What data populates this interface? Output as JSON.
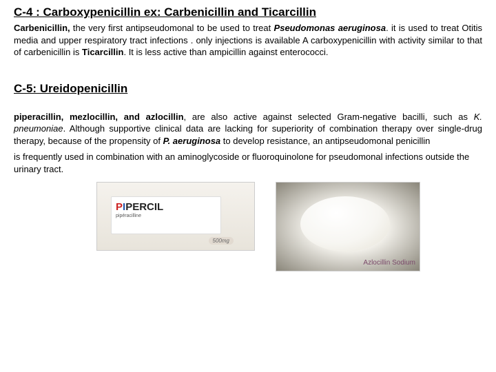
{
  "section1": {
    "heading": "C-4 : Carboxypenicillin  ex: Carbenicillin  and Ticarcillin",
    "p1a": "Carbenicillin,",
    "p1b": " the very first antipseudomonal  to be used to treat ",
    "p1c": "Pseudomonas aeruginosa",
    "p1d": ". it is used to treat Otitis media and upper respiratory tract infections . only injections is available  A carboxypenicillin with activity similar to that of  carbenicillin is ",
    "p1e": "Ticarcillin",
    "p1f": ". It is less active than  ampicillin against enterococci."
  },
  "section2": {
    "heading": "C-5: Ureidopenicillin",
    "p2a": "piperacillin, mezlocillin, and azlocillin",
    "p2b": ", are also active against selected Gram-negative bacilli, such as ",
    "p2c": "K. pneumoniae",
    "p2d": ". Although supportive  clinical data are lacking for superiority  of combination therapy over single-drug therapy, because of the propensity of ",
    "p2e": "P. aeruginosa",
    "p2f": " to  develop resistance, an antipseudomonal penicillin",
    "p2g": "is frequently used in combination with an  aminoglycoside or fluoroquinolone for pseudomonal infections outside the urinary tract."
  },
  "images": {
    "pipercil": {
      "brand_p": "P",
      "brand_i": "I",
      "brand_rest": "PERCIL",
      "sub": "pipéracilline",
      "dose": "500mg"
    },
    "azlocillin": {
      "label": "Azlocillin Sodium"
    }
  },
  "colors": {
    "text": "#000000",
    "bg": "#ffffff"
  }
}
